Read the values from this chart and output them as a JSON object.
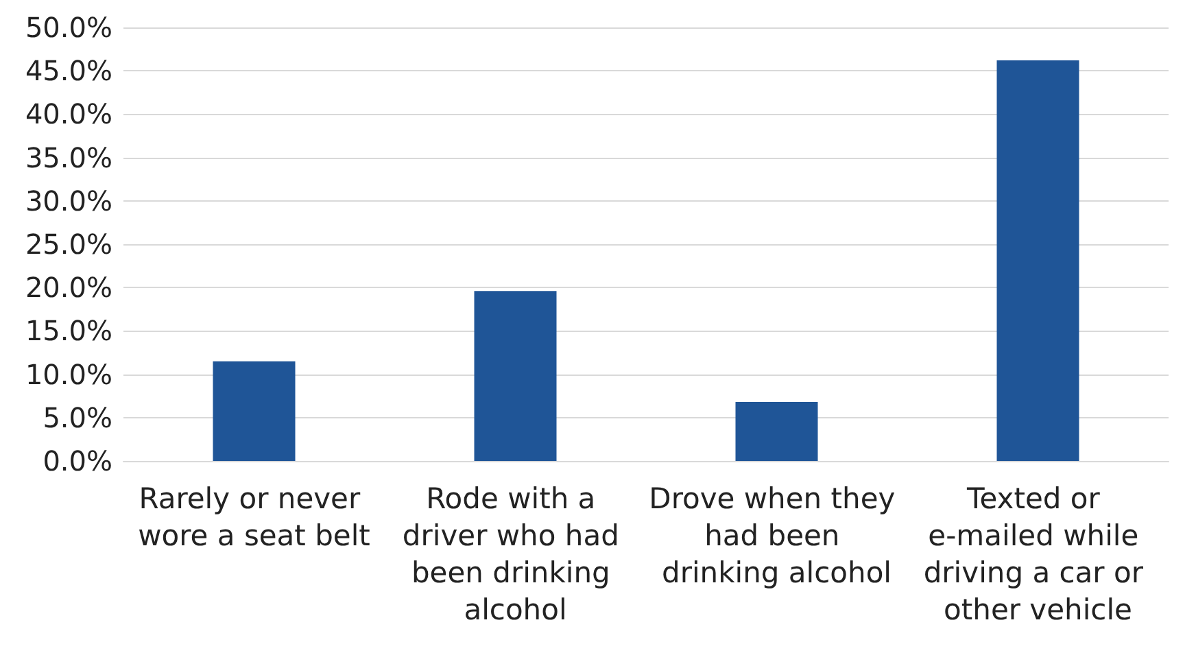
{
  "chart_data": {
    "type": "bar",
    "categories": [
      "Rarely or never wore a seat belt",
      "Rode with a driver who had been drinking alcohol",
      "Drove when they had been drinking alcohol",
      "Texted or e-mailed while driving a car or other vehicle"
    ],
    "values": [
      11.5,
      19.6,
      6.8,
      46.2
    ],
    "color": "#1f5597",
    "ylim": [
      0,
      50
    ],
    "yticks": [
      {
        "value": 0,
        "label": "0.0%"
      },
      {
        "value": 5,
        "label": "5.0%"
      },
      {
        "value": 10,
        "label": "10.0%"
      },
      {
        "value": 15,
        "label": "15.0%"
      },
      {
        "value": 20,
        "label": "20.0%"
      },
      {
        "value": 25,
        "label": "25.0%"
      },
      {
        "value": 30,
        "label": "30.0%"
      },
      {
        "value": 35,
        "label": "35.0%"
      },
      {
        "value": 40,
        "label": "40.0%"
      },
      {
        "value": 45,
        "label": "45.0%"
      },
      {
        "value": 50,
        "label": "50.0%"
      }
    ],
    "grid": "y"
  }
}
